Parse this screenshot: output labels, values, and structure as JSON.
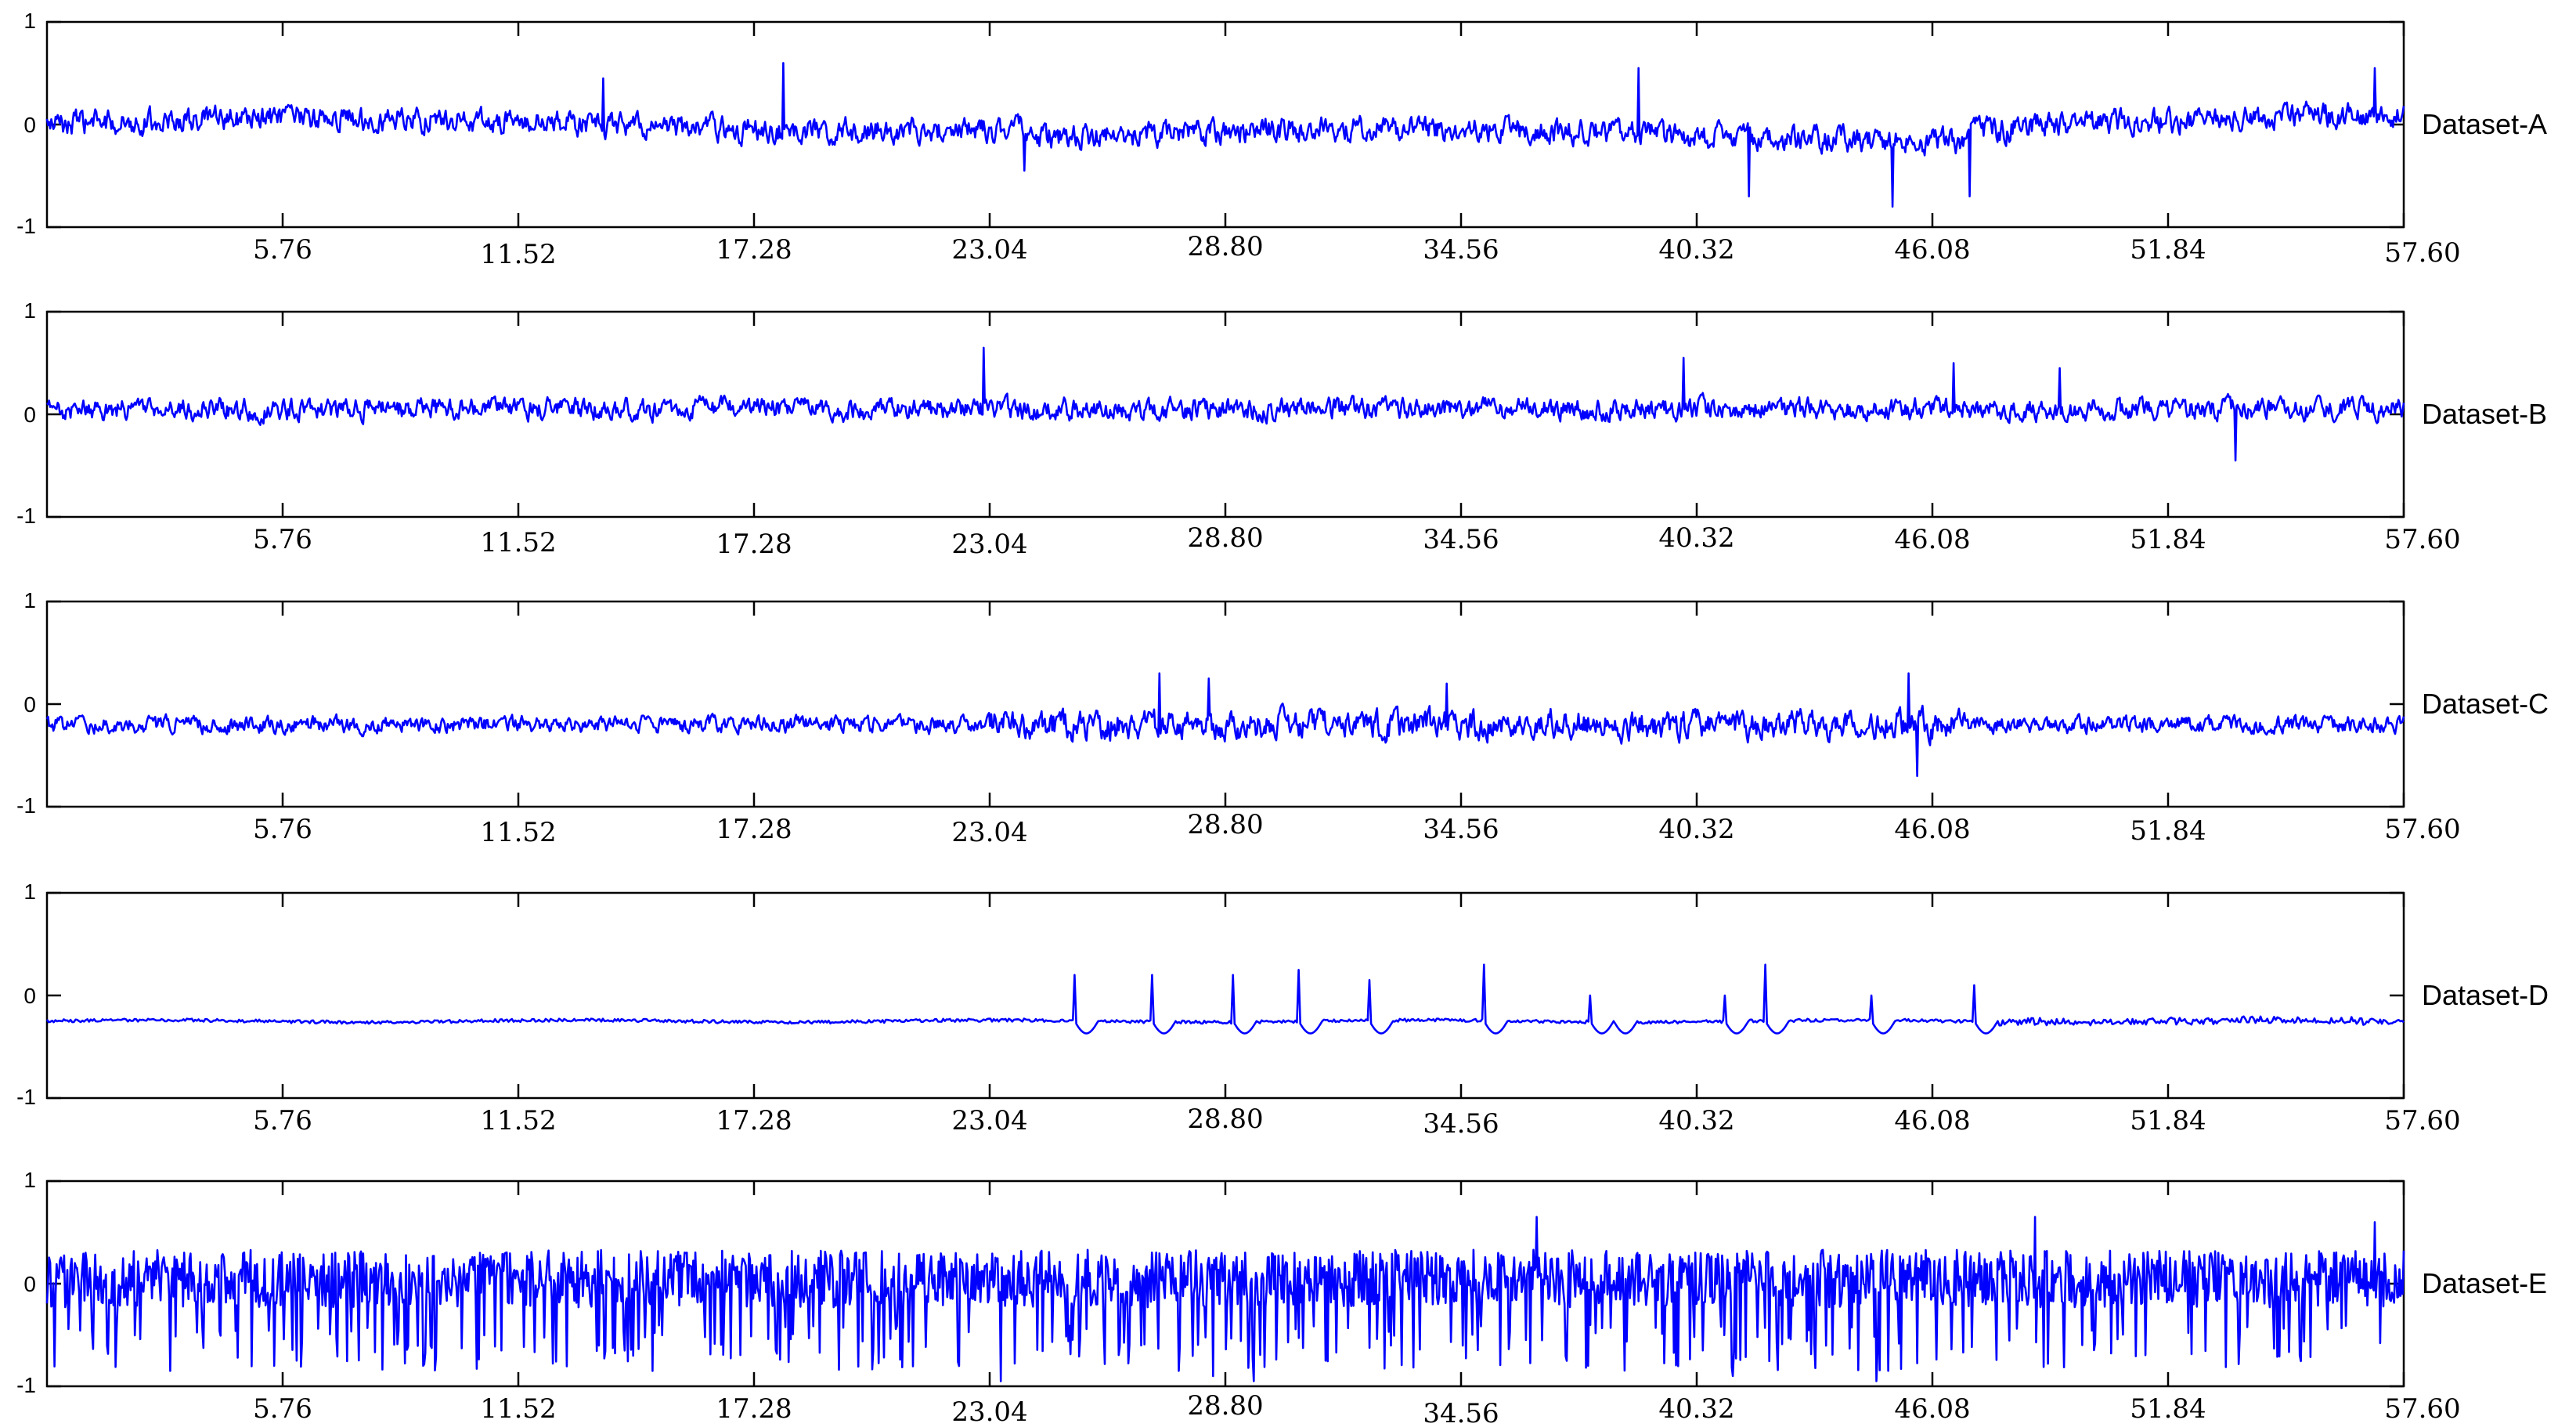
{
  "chart_data": [
    {
      "type": "line",
      "series": [
        {
          "name": "Dataset-A",
          "color": "#0000ff"
        }
      ],
      "x_range": [
        0,
        57.6
      ],
      "ylim": [
        -1,
        1
      ],
      "x_ticks": [
        5.76,
        11.52,
        17.28,
        23.04,
        28.8,
        34.56,
        40.32,
        46.08,
        51.84,
        57.6
      ],
      "x_tick_labels": [
        "5.76",
        "11.52",
        "17.28",
        "23.04",
        "28.80",
        "34.56",
        "40.32",
        "46.08",
        "51.84",
        "57.60"
      ],
      "y_ticks": [
        -1,
        0,
        1
      ],
      "y_tick_labels": [
        "-1",
        "0",
        "1"
      ],
      "baseline": 0.0,
      "noise_amplitude": 0.15,
      "spikes": [
        {
          "x": 13.6,
          "y": 0.45
        },
        {
          "x": 18.0,
          "y": 0.6
        },
        {
          "x": 23.9,
          "y": -0.45
        },
        {
          "x": 38.9,
          "y": 0.55
        },
        {
          "x": 41.6,
          "y": -0.7
        },
        {
          "x": 45.1,
          "y": -0.8
        },
        {
          "x": 47.0,
          "y": -0.7
        },
        {
          "x": 56.9,
          "y": 0.55
        }
      ]
    },
    {
      "type": "line",
      "series": [
        {
          "name": "Dataset-B",
          "color": "#0000ff"
        }
      ],
      "x_range": [
        0,
        57.6
      ],
      "ylim": [
        -1,
        1
      ],
      "x_ticks": [
        5.76,
        11.52,
        17.28,
        23.04,
        28.8,
        34.56,
        40.32,
        46.08,
        51.84,
        57.6
      ],
      "x_tick_labels": [
        "5.76",
        "11.52",
        "17.28",
        "23.04",
        "28.80",
        "34.56",
        "40.32",
        "46.08",
        "51.84",
        "57.60"
      ],
      "y_ticks": [
        -1,
        0,
        1
      ],
      "y_tick_labels": [
        "-1",
        "0",
        "1"
      ],
      "baseline": 0.05,
      "noise_amplitude": 0.13,
      "spikes": [
        {
          "x": 22.9,
          "y": 0.65
        },
        {
          "x": 40.0,
          "y": 0.55
        },
        {
          "x": 46.6,
          "y": 0.5
        },
        {
          "x": 49.2,
          "y": 0.45
        },
        {
          "x": 53.5,
          "y": -0.45
        }
      ]
    },
    {
      "type": "line",
      "series": [
        {
          "name": "Dataset-C",
          "color": "#0000ff"
        }
      ],
      "x_range": [
        0,
        57.6
      ],
      "ylim": [
        -1,
        1
      ],
      "x_ticks": [
        5.76,
        11.52,
        17.28,
        23.04,
        28.8,
        34.56,
        40.32,
        46.08,
        51.84,
        57.6
      ],
      "x_tick_labels": [
        "5.76",
        "11.52",
        "17.28",
        "23.04",
        "28.80",
        "34.56",
        "40.32",
        "46.08",
        "51.84",
        "57.60"
      ],
      "y_ticks": [
        -1,
        0,
        1
      ],
      "y_tick_labels": [
        "-1",
        "0",
        "1"
      ],
      "baseline": -0.2,
      "noise_amplitude": 0.1,
      "spikes": [
        {
          "x": 27.2,
          "y": 0.3
        },
        {
          "x": 28.4,
          "y": 0.25
        },
        {
          "x": 34.2,
          "y": 0.2
        },
        {
          "x": 45.5,
          "y": 0.3
        },
        {
          "x": 45.7,
          "y": -0.7
        }
      ]
    },
    {
      "type": "line",
      "series": [
        {
          "name": "Dataset-D",
          "color": "#0000ff"
        }
      ],
      "x_range": [
        0,
        57.6
      ],
      "ylim": [
        -1,
        1
      ],
      "x_ticks": [
        5.76,
        11.52,
        17.28,
        23.04,
        28.8,
        34.56,
        40.32,
        46.08,
        51.84,
        57.6
      ],
      "x_tick_labels": [
        "5.76",
        "11.52",
        "17.28",
        "23.04",
        "28.80",
        "34.56",
        "40.32",
        "46.08",
        "51.84",
        "57.60"
      ],
      "y_ticks": [
        -1,
        0,
        1
      ],
      "y_tick_labels": [
        "-1",
        "0",
        "1"
      ],
      "baseline": -0.25,
      "noise_amplitude": 0.015,
      "spikes": [
        {
          "x": 25.1,
          "y": 0.2
        },
        {
          "x": 27.0,
          "y": 0.2
        },
        {
          "x": 29.0,
          "y": 0.2
        },
        {
          "x": 30.6,
          "y": 0.25
        },
        {
          "x": 32.3,
          "y": 0.15
        },
        {
          "x": 35.1,
          "y": 0.3
        },
        {
          "x": 37.7,
          "y": 0.0
        },
        {
          "x": 38.3,
          "y": 0.2
        },
        {
          "x": 41.0,
          "y": 0.0
        },
        {
          "x": 42.0,
          "y": 0.3
        },
        {
          "x": 44.6,
          "y": 0.0
        },
        {
          "x": 47.1,
          "y": 0.1
        }
      ]
    },
    {
      "type": "line",
      "series": [
        {
          "name": "Dataset-E",
          "color": "#0000ff"
        }
      ],
      "x_range": [
        0,
        57.6
      ],
      "ylim": [
        -1,
        1
      ],
      "x_ticks": [
        5.76,
        11.52,
        17.28,
        23.04,
        28.8,
        34.56,
        40.32,
        46.08,
        51.84,
        57.6
      ],
      "x_tick_labels": [
        "5.76",
        "11.52",
        "17.28",
        "23.04",
        "28.80",
        "34.56",
        "40.32",
        "46.08",
        "51.84",
        "57.60"
      ],
      "y_ticks": [
        -1,
        0,
        1
      ],
      "y_tick_labels": [
        "-1",
        "0",
        "1"
      ],
      "baseline": 0.05,
      "noise_amplitude": 0.35,
      "spikes": [
        {
          "x": 3.0,
          "y": -0.85
        },
        {
          "x": 9.2,
          "y": -0.8
        },
        {
          "x": 14.8,
          "y": -0.85
        },
        {
          "x": 23.3,
          "y": -0.95
        },
        {
          "x": 28.5,
          "y": -0.9
        },
        {
          "x": 29.5,
          "y": -0.95
        },
        {
          "x": 36.4,
          "y": 0.65
        },
        {
          "x": 41.2,
          "y": -0.9
        },
        {
          "x": 44.7,
          "y": -0.95
        },
        {
          "x": 48.6,
          "y": 0.65
        },
        {
          "x": 56.9,
          "y": 0.6
        }
      ]
    }
  ]
}
